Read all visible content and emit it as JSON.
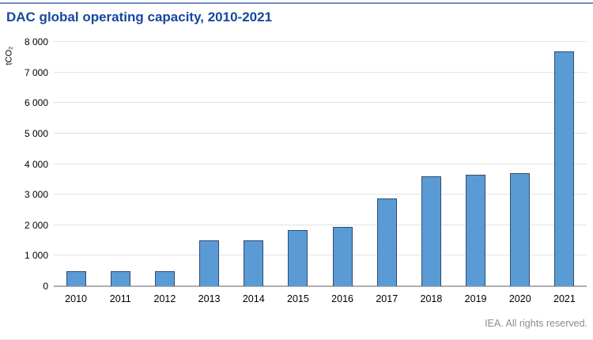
{
  "chart_data": {
    "type": "bar",
    "title": "DAC global operating capacity, 2010-2021",
    "ylabel": "tCO₂",
    "xlabel": "",
    "categories": [
      "2010",
      "2011",
      "2012",
      "2013",
      "2014",
      "2015",
      "2016",
      "2017",
      "2018",
      "2019",
      "2020",
      "2021"
    ],
    "values": [
      500,
      500,
      500,
      1500,
      1500,
      1850,
      1950,
      2870,
      3610,
      3660,
      3710,
      7700
    ],
    "ylim": [
      0,
      8000
    ],
    "ytick_step": 1000,
    "ytick_labels": [
      "0",
      "1 000",
      "2 000",
      "3 000",
      "4 000",
      "5 000",
      "6 000",
      "7 000",
      "8 000"
    ],
    "grid": true,
    "legend": false,
    "footer": "IEA. All rights reserved.",
    "colors": {
      "bar_fill": "#5b9bd5",
      "bar_border": "#2f4b6e",
      "grid_color": "#e3e3e3",
      "axis_color": "#b0b0b0",
      "title_color": "#17479e",
      "top_rule": "#6b8cc3",
      "footer_color": "#8c8c8c"
    }
  }
}
